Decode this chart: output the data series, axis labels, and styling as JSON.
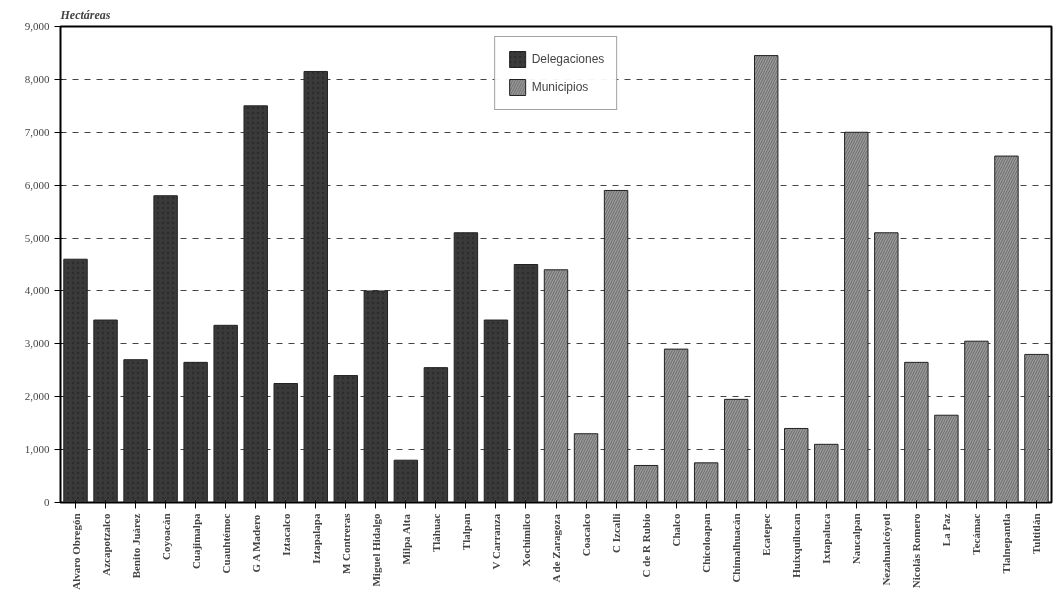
{
  "chart_data": {
    "type": "bar",
    "ylabel": "Hectáreas",
    "categories": [
      "Alvaro Obregón",
      "Azcapotzalco",
      "Benito Juárez",
      "Coyoacán",
      "Cuajimalpa",
      "Cuauhtémoc",
      "G A Madero",
      "Iztacalco",
      "Iztapalapa",
      "M Contreras",
      "Miguel Hidalgo",
      "Milpa Alta",
      "Tláhuac",
      "Tlalpan",
      "V Carranza",
      "Xochimilco",
      "A de Zaragoza",
      "Coacalco",
      "C Izcalli",
      "C de R Rubio",
      "Chalco",
      "Chicoloapan",
      "Chimalhuacán",
      "Ecatepec",
      "Huixquilucan",
      "Ixtapaluca",
      "Naucalpan",
      "Nezahualcóyotl",
      "Nicolás Romero",
      "La Paz",
      "Tecámac",
      "Tlalnepantla",
      "Tultitlán"
    ],
    "series": [
      {
        "name": "Delegaciones",
        "color": "#3a3a3a",
        "values": [
          4600,
          3450,
          2700,
          5800,
          2650,
          3350,
          7500,
          2250,
          8150,
          2400,
          4000,
          800,
          2550,
          5100,
          3450,
          4500,
          null,
          null,
          null,
          null,
          null,
          null,
          null,
          null,
          null,
          null,
          null,
          null,
          null,
          null,
          null,
          null,
          null
        ]
      },
      {
        "name": "Municipios",
        "color": "#9a9a9a",
        "values": [
          null,
          null,
          null,
          null,
          null,
          null,
          null,
          null,
          null,
          null,
          null,
          null,
          null,
          null,
          null,
          null,
          4400,
          1300,
          5900,
          700,
          2900,
          750,
          1950,
          8450,
          1400,
          1100,
          7000,
          5100,
          2650,
          1650,
          3050,
          6550,
          2800
        ]
      }
    ],
    "ylim": [
      0,
      9000
    ],
    "yticks": [
      0,
      {
        "value": 1000,
        "label": "1,000"
      },
      {
        "value": 2000,
        "label": "2,000"
      },
      {
        "value": 3000,
        "label": "3,000"
      },
      {
        "value": 4000,
        "label": "4,000"
      },
      {
        "value": 5000,
        "label": "5,000"
      },
      {
        "value": 6000,
        "label": "6,000"
      },
      {
        "value": 7000,
        "label": "7,000"
      },
      {
        "value": 8000,
        "label": "8,000"
      },
      {
        "value": 9000,
        "label": "9,000"
      }
    ],
    "grid": "y",
    "legend": "top"
  }
}
